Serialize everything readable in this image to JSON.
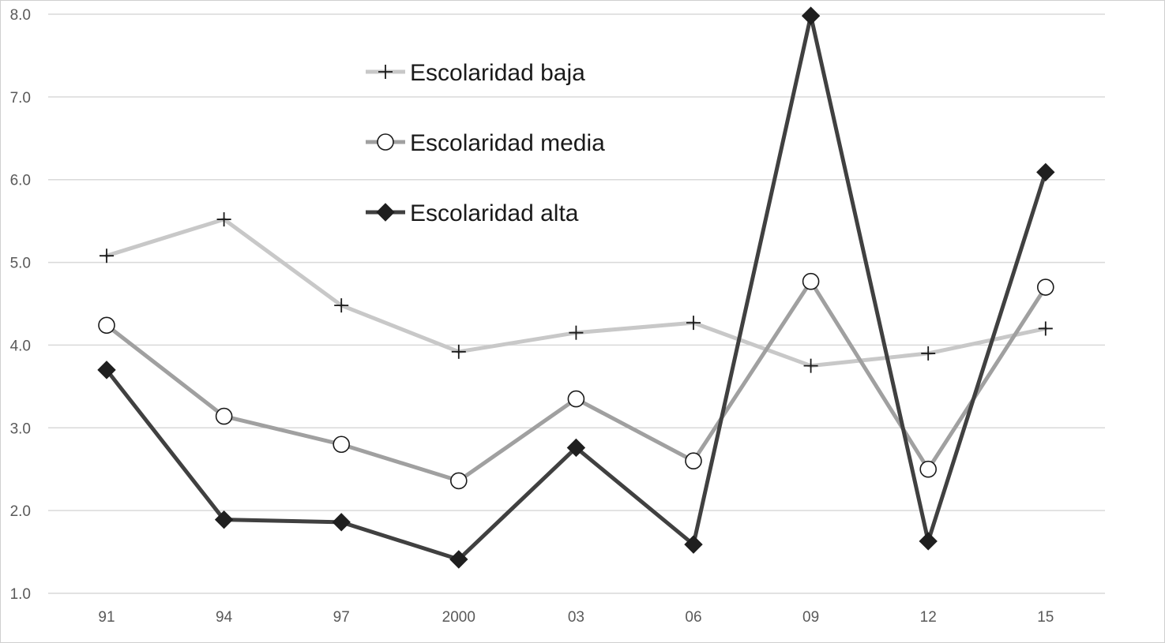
{
  "chart_data": {
    "type": "line",
    "categories": [
      "91",
      "94",
      "97",
      "2000",
      "03",
      "06",
      "09",
      "12",
      "15"
    ],
    "ylim": [
      1.0,
      8.0
    ],
    "yticks": [
      "1.0",
      "2.0",
      "3.0",
      "4.0",
      "5.0",
      "6.0",
      "7.0",
      "8.0"
    ],
    "grid": true,
    "legend_position": "top-center",
    "series": [
      {
        "name": "Escolaridad baja",
        "color": "#c8c8c8",
        "marker": "plus",
        "values": [
          5.08,
          5.52,
          4.48,
          3.92,
          4.15,
          4.27,
          3.75,
          3.9,
          4.2
        ]
      },
      {
        "name": "Escolaridad media",
        "color": "#a0a0a0",
        "marker": "circle",
        "values": [
          4.24,
          3.14,
          2.8,
          2.36,
          3.35,
          2.6,
          4.77,
          2.5,
          4.7
        ]
      },
      {
        "name": "Escolaridad alta",
        "color": "#404040",
        "marker": "diamond",
        "values": [
          3.7,
          1.89,
          1.86,
          1.41,
          2.76,
          1.59,
          7.98,
          1.63,
          6.09
        ]
      }
    ]
  }
}
